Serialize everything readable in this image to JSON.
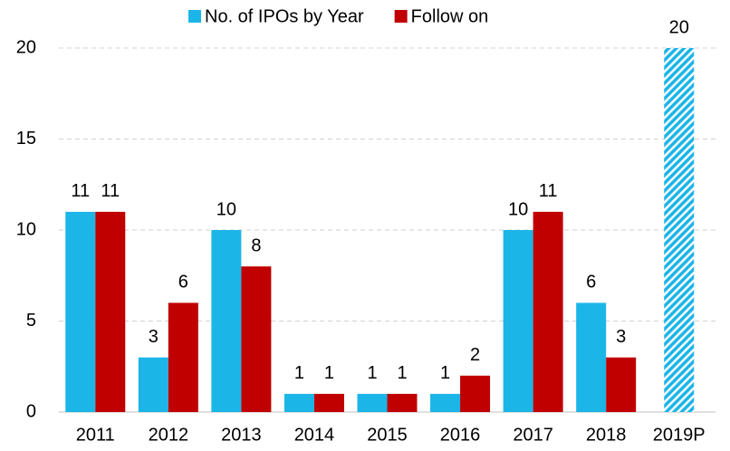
{
  "chart_data": {
    "type": "bar",
    "categories": [
      "2011",
      "2012",
      "2013",
      "2014",
      "2015",
      "2016",
      "2017",
      "2018",
      "2019P"
    ],
    "series": [
      {
        "name": "No. of IPOs by Year",
        "color": "#1cb5e8",
        "values": [
          11,
          3,
          10,
          1,
          1,
          1,
          10,
          6,
          20
        ],
        "hatched": [
          false,
          false,
          false,
          false,
          false,
          false,
          false,
          false,
          true
        ]
      },
      {
        "name": "Follow on",
        "color": "#c00000",
        "values": [
          11,
          6,
          8,
          1,
          1,
          2,
          11,
          3,
          null
        ]
      }
    ],
    "ylim": [
      0,
      20
    ],
    "yticks": [
      0,
      5,
      10,
      15,
      20
    ],
    "grid": true,
    "legend": "top"
  }
}
